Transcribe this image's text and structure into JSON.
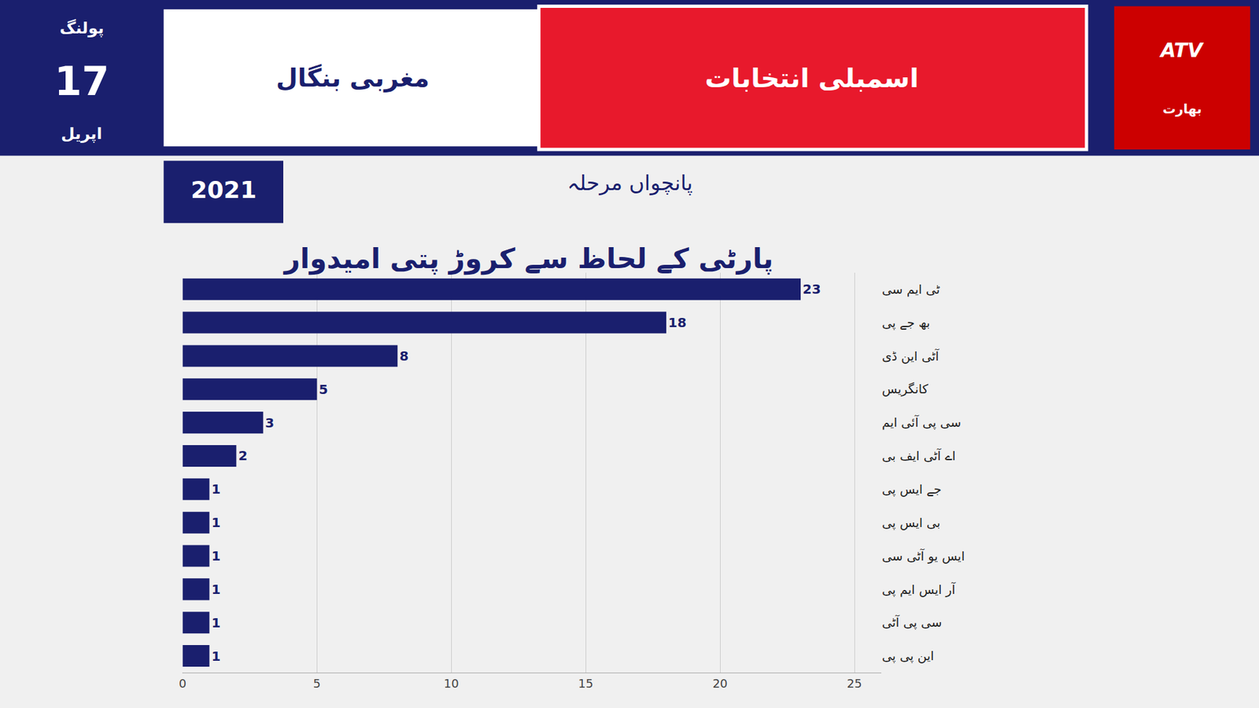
{
  "chart_data": {
    "type": "bar",
    "orientation": "horizontal",
    "title": "پارٹی کے لحاظ سے کروڑ پتی امیدوار",
    "subtitle": "پانچواں مرحلہ",
    "annotations": [
      "پولنگ",
      "17",
      "اپریل",
      "مغربی بنگال",
      "اسمبلی انتخابات",
      "ATV",
      "بھارت",
      "2021"
    ],
    "categories": [
      "ٹی ایم سی",
      "بھ جے پی",
      "آٹی این ڈی",
      "کانگریس",
      "سی پی آئی ایم",
      "اے آٹی ایف بی",
      "جے ایس پی",
      "بی ایس پی",
      "ایس یو آٹی سی",
      "آر ایس ایم پی",
      "سی پی آٹی",
      "این پی پی"
    ],
    "values": [
      23,
      18,
      8,
      5,
      3,
      2,
      1,
      1,
      1,
      1,
      1,
      1
    ],
    "color": "#1a1f6e",
    "xlim": [
      0,
      26
    ],
    "xticks": [
      0,
      5,
      10,
      15,
      20,
      25
    ],
    "grid": true,
    "data_labels": true
  }
}
